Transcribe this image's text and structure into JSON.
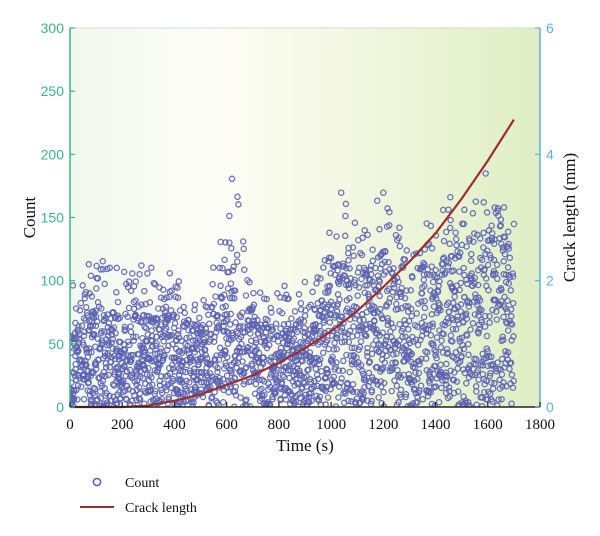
{
  "chart_data": {
    "type": "scatter",
    "xlabel": "Time (s)",
    "ylabel": "Count",
    "y2label": "Crack length (mm)",
    "xlim": [
      0,
      1800
    ],
    "ylim": [
      0,
      300
    ],
    "y2lim": [
      0,
      6
    ],
    "x_ticks": [
      "0",
      "200",
      "400",
      "600",
      "800",
      "1000",
      "1200",
      "1400",
      "1600",
      "1800"
    ],
    "y_ticks": [
      "0",
      "50",
      "100",
      "150",
      "200",
      "250",
      "300"
    ],
    "y2_ticks": [
      "0",
      "2",
      "4",
      "6"
    ],
    "legend_position": "bottom-left",
    "colors": {
      "count": "#5a62b4",
      "crack": "#9b2d2d",
      "left_axis": "#3cb48a",
      "right_axis": "#5ab4e0"
    },
    "series": [
      {
        "name": "Count",
        "kind": "scatter",
        "envelope": {
          "x": [
            0,
            50,
            100,
            200,
            300,
            400,
            500,
            560,
            600,
            620,
            640,
            680,
            720,
            800,
            900,
            960,
            1000,
            1040,
            1080,
            1120,
            1160,
            1200,
            1240,
            1280,
            1320,
            1360,
            1400,
            1440,
            1480,
            1520,
            1560,
            1600,
            1640,
            1680,
            1700
          ],
          "upper": [
            95,
            110,
            120,
            110,
            115,
            105,
            90,
            120,
            180,
            185,
            170,
            110,
            90,
            95,
            100,
            110,
            150,
            175,
            150,
            140,
            160,
            175,
            150,
            140,
            120,
            160,
            150,
            165,
            170,
            155,
            175,
            190,
            195,
            180,
            170
          ],
          "dense_upper": [
            60,
            70,
            80,
            70,
            75,
            70,
            60,
            80,
            110,
            115,
            100,
            70,
            65,
            60,
            70,
            80,
            110,
            120,
            105,
            100,
            115,
            120,
            105,
            95,
            100,
            115,
            110,
            120,
            125,
            115,
            125,
            135,
            140,
            130,
            120
          ]
        }
      },
      {
        "name": "Crack length",
        "kind": "line",
        "x": [
          0,
          200,
          300,
          400,
          500,
          600,
          700,
          800,
          900,
          1000,
          1100,
          1200,
          1300,
          1400,
          1500,
          1600,
          1700
        ],
        "y": [
          0,
          0,
          0.02,
          0.1,
          0.2,
          0.35,
          0.5,
          0.7,
          0.93,
          1.2,
          1.52,
          1.9,
          2.3,
          2.75,
          3.3,
          3.9,
          4.55
        ]
      }
    ]
  }
}
